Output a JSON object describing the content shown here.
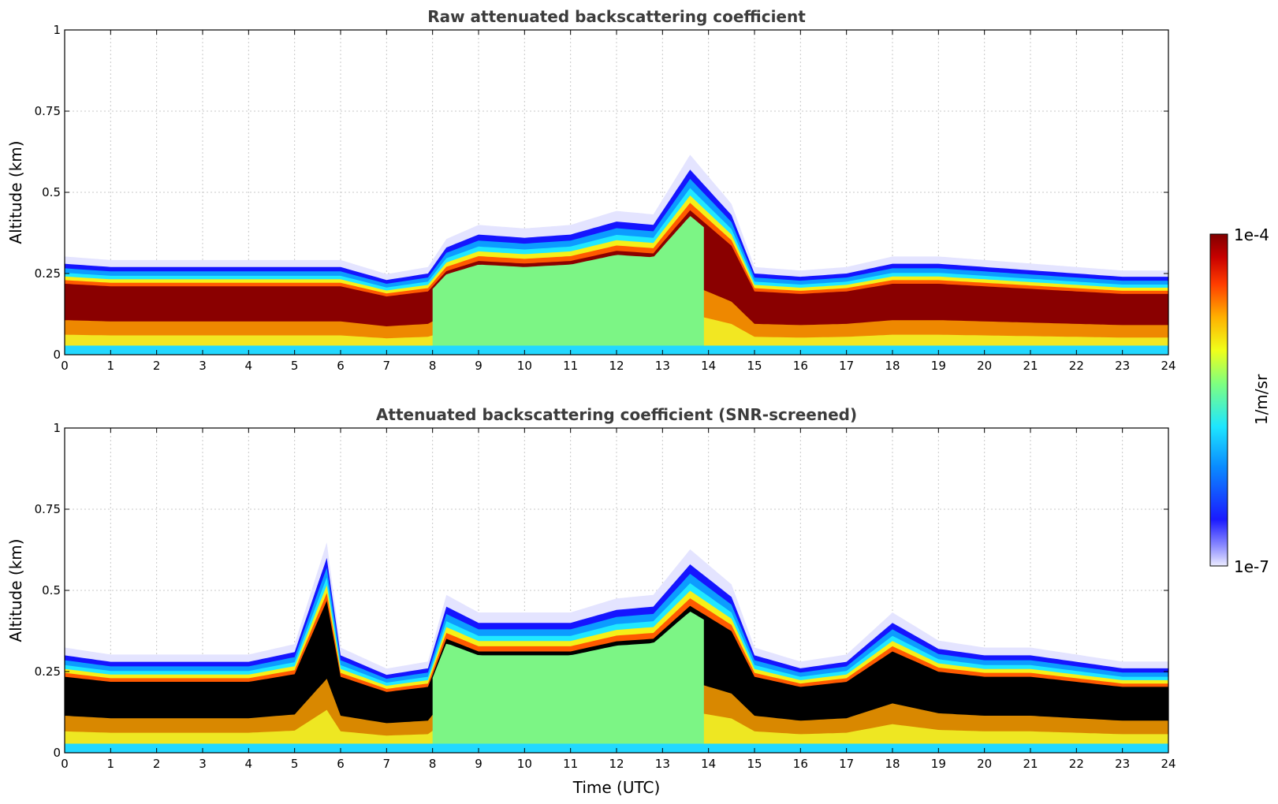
{
  "chart_data": [
    {
      "type": "heatmap",
      "title": "Raw attenuated backscattering coefficient",
      "xlabel": "",
      "ylabel": "Altitude (km)",
      "xlim": [
        0,
        24
      ],
      "ylim": [
        0,
        1
      ],
      "x_ticks": [
        "0",
        "1",
        "2",
        "3",
        "4",
        "5",
        "6",
        "7",
        "8",
        "9",
        "10",
        "11",
        "12",
        "13",
        "14",
        "15",
        "16",
        "17",
        "18",
        "19",
        "20",
        "21",
        "22",
        "23",
        "24"
      ],
      "y_ticks": [
        "0",
        "0.25",
        "0.5",
        "0.75",
        "1"
      ],
      "grid": true,
      "layer_top_km": [
        [
          0,
          0.28
        ],
        [
          1,
          0.27
        ],
        [
          2,
          0.27
        ],
        [
          3,
          0.27
        ],
        [
          4,
          0.27
        ],
        [
          5,
          0.27
        ],
        [
          6,
          0.27
        ],
        [
          7,
          0.23
        ],
        [
          7.9,
          0.25
        ],
        [
          8.3,
          0.33
        ],
        [
          9,
          0.37
        ],
        [
          10,
          0.36
        ],
        [
          11,
          0.37
        ],
        [
          12,
          0.41
        ],
        [
          12.8,
          0.4
        ],
        [
          13.6,
          0.57
        ],
        [
          14.5,
          0.43
        ],
        [
          15,
          0.25
        ],
        [
          16,
          0.24
        ],
        [
          17,
          0.25
        ],
        [
          18,
          0.28
        ],
        [
          19,
          0.28
        ],
        [
          20,
          0.27
        ],
        [
          21,
          0.26
        ],
        [
          22,
          0.25
        ],
        [
          23,
          0.24
        ],
        [
          24,
          0.24
        ]
      ]
    },
    {
      "type": "heatmap",
      "title": "Attenuated backscattering coefficient (SNR-screened)",
      "xlabel": "Time (UTC)",
      "ylabel": "Altitude (km)",
      "xlim": [
        0,
        24
      ],
      "ylim": [
        0,
        1
      ],
      "x_ticks": [
        "0",
        "1",
        "2",
        "3",
        "4",
        "5",
        "6",
        "7",
        "8",
        "9",
        "10",
        "11",
        "12",
        "13",
        "14",
        "15",
        "16",
        "17",
        "18",
        "19",
        "20",
        "21",
        "22",
        "23",
        "24"
      ],
      "y_ticks": [
        "0",
        "0.25",
        "0.5",
        "0.75",
        "1"
      ],
      "grid": true,
      "layer_top_km": [
        [
          0,
          0.3
        ],
        [
          1,
          0.28
        ],
        [
          2,
          0.28
        ],
        [
          3,
          0.28
        ],
        [
          4,
          0.28
        ],
        [
          5,
          0.31
        ],
        [
          5.7,
          0.6
        ],
        [
          6,
          0.3
        ],
        [
          7,
          0.24
        ],
        [
          7.9,
          0.26
        ],
        [
          8.3,
          0.45
        ],
        [
          9,
          0.4
        ],
        [
          10,
          0.4
        ],
        [
          11,
          0.4
        ],
        [
          12,
          0.44
        ],
        [
          12.8,
          0.45
        ],
        [
          13.6,
          0.58
        ],
        [
          14.5,
          0.48
        ],
        [
          15,
          0.3
        ],
        [
          16,
          0.26
        ],
        [
          17,
          0.28
        ],
        [
          18,
          0.4
        ],
        [
          19,
          0.32
        ],
        [
          20,
          0.3
        ],
        [
          21,
          0.3
        ],
        [
          22,
          0.28
        ],
        [
          23,
          0.26
        ],
        [
          24,
          0.26
        ]
      ]
    }
  ],
  "colorbar": {
    "label": "1/m/sr",
    "max_label": "1e-4",
    "min_label": "1e-7",
    "scale": "log",
    "colors": [
      "#ececff",
      "#1a1aff",
      "#1ee6ff",
      "#7fff7f",
      "#f0ff1a",
      "#ff7a00",
      "#e00000",
      "#800000"
    ]
  }
}
